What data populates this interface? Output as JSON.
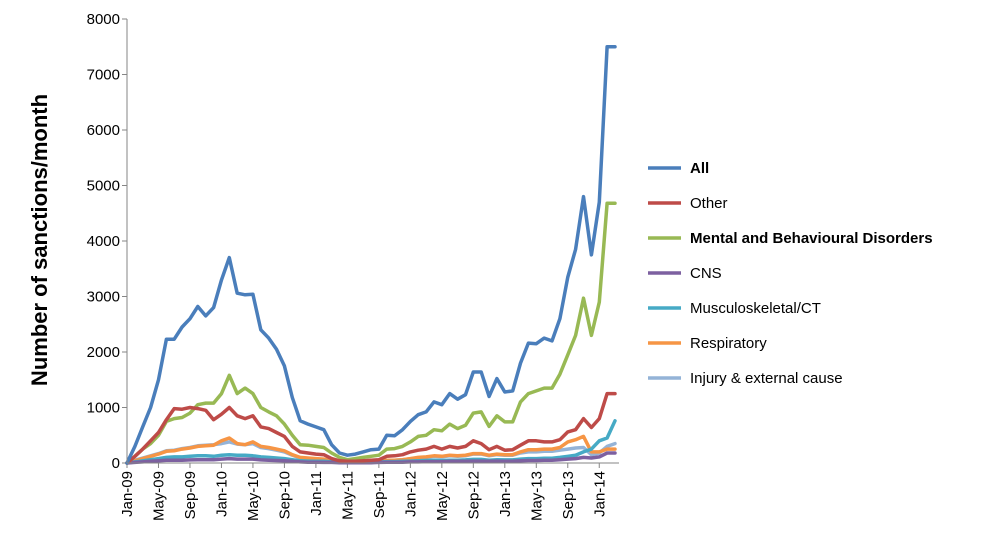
{
  "chart_data": {
    "type": "line",
    "title": "",
    "xlabel": "",
    "ylabel": "Number of sanctions/month",
    "ylim": [
      0,
      8000
    ],
    "yticks": [
      0,
      1000,
      2000,
      3000,
      4000,
      5000,
      6000,
      7000,
      8000
    ],
    "grid": false,
    "legend_position": "right",
    "x_tick_labels": [
      "Jan-09",
      "May-09",
      "Sep-09",
      "Jan-10",
      "May-10",
      "Sep-10",
      "Jan-11",
      "May-11",
      "Sep-11",
      "Jan-12",
      "May-12",
      "Sep-12",
      "Jan-13",
      "May-13",
      "Sep-13",
      "Jan-14"
    ],
    "x_tick_indices": [
      0,
      4,
      8,
      12,
      16,
      20,
      24,
      28,
      32,
      36,
      40,
      44,
      48,
      52,
      56,
      60
    ],
    "num_points": 63,
    "series": [
      {
        "name": "All",
        "color": "#4A7EBB",
        "bold": true,
        "values": [
          0,
          300,
          650,
          1000,
          1500,
          2230,
          2230,
          2450,
          2600,
          2820,
          2650,
          2800,
          3300,
          3700,
          3060,
          3030,
          3040,
          2400,
          2250,
          2050,
          1750,
          1180,
          760,
          700,
          650,
          600,
          330,
          180,
          140,
          160,
          200,
          240,
          250,
          500,
          490,
          600,
          750,
          870,
          920,
          1100,
          1050,
          1250,
          1150,
          1230,
          1640,
          1640,
          1200,
          1520,
          1280,
          1300,
          1800,
          2160,
          2150,
          2250,
          2200,
          2600,
          3350,
          3850,
          4800,
          3750,
          4700,
          7500,
          7500
        ]
      },
      {
        "name": "Other",
        "color": "#BE4B48",
        "bold": false,
        "values": [
          0,
          120,
          250,
          400,
          550,
          780,
          980,
          970,
          1000,
          980,
          950,
          780,
          880,
          1000,
          850,
          800,
          850,
          650,
          620,
          550,
          480,
          300,
          200,
          180,
          160,
          150,
          80,
          40,
          30,
          30,
          40,
          50,
          60,
          120,
          130,
          150,
          200,
          230,
          250,
          300,
          250,
          300,
          270,
          300,
          400,
          350,
          240,
          300,
          230,
          240,
          320,
          400,
          400,
          380,
          380,
          420,
          560,
          600,
          800,
          640,
          800,
          1250,
          1250
        ]
      },
      {
        "name": "Mental and Behavioural Disorders",
        "color": "#98B954",
        "bold": true,
        "values": [
          0,
          120,
          250,
          350,
          500,
          750,
          800,
          820,
          900,
          1050,
          1080,
          1080,
          1250,
          1580,
          1250,
          1350,
          1250,
          1000,
          920,
          850,
          700,
          500,
          330,
          320,
          300,
          280,
          180,
          100,
          60,
          80,
          100,
          120,
          140,
          250,
          260,
          300,
          380,
          480,
          500,
          600,
          580,
          700,
          620,
          680,
          900,
          920,
          660,
          850,
          740,
          740,
          1100,
          1250,
          1300,
          1350,
          1350,
          1600,
          1950,
          2300,
          2970,
          2300,
          2900,
          4680,
          4680
        ]
      },
      {
        "name": "CNS",
        "color": "#7D60A0",
        "bold": false,
        "values": [
          0,
          10,
          20,
          30,
          40,
          50,
          50,
          50,
          55,
          60,
          60,
          60,
          70,
          80,
          70,
          70,
          70,
          55,
          50,
          45,
          40,
          30,
          20,
          15,
          15,
          10,
          10,
          5,
          5,
          5,
          5,
          5,
          10,
          15,
          15,
          15,
          20,
          20,
          25,
          25,
          25,
          30,
          30,
          30,
          35,
          35,
          30,
          35,
          30,
          30,
          40,
          45,
          45,
          50,
          50,
          60,
          70,
          80,
          100,
          90,
          110,
          180,
          180
        ]
      },
      {
        "name": "Musculoskeletal/CT",
        "color": "#46AAC5",
        "bold": false,
        "values": [
          0,
          20,
          40,
          60,
          80,
          100,
          110,
          110,
          120,
          130,
          130,
          120,
          140,
          150,
          140,
          140,
          130,
          110,
          100,
          90,
          80,
          60,
          40,
          35,
          30,
          30,
          20,
          10,
          8,
          8,
          10,
          12,
          15,
          25,
          25,
          30,
          35,
          40,
          45,
          50,
          45,
          50,
          50,
          55,
          65,
          65,
          50,
          60,
          55,
          55,
          70,
          80,
          80,
          85,
          85,
          100,
          120,
          140,
          200,
          250,
          400,
          450,
          760
        ]
      },
      {
        "name": "Respiratory",
        "color": "#F69545",
        "bold": false,
        "values": [
          0,
          40,
          80,
          120,
          160,
          210,
          220,
          250,
          270,
          300,
          310,
          320,
          400,
          450,
          350,
          330,
          380,
          300,
          280,
          250,
          220,
          150,
          100,
          90,
          80,
          70,
          40,
          20,
          15,
          15,
          20,
          25,
          30,
          50,
          50,
          60,
          80,
          100,
          110,
          130,
          120,
          140,
          130,
          140,
          170,
          170,
          140,
          160,
          150,
          150,
          200,
          240,
          240,
          250,
          250,
          280,
          380,
          420,
          480,
          200,
          200,
          250,
          250
        ]
      },
      {
        "name": "Injury & external cause",
        "color": "#94B3D7",
        "bold": false,
        "values": [
          0,
          50,
          90,
          130,
          170,
          220,
          230,
          260,
          280,
          310,
          320,
          330,
          350,
          380,
          340,
          330,
          350,
          280,
          260,
          230,
          200,
          140,
          90,
          80,
          70,
          60,
          35,
          20,
          15,
          15,
          20,
          25,
          30,
          50,
          50,
          60,
          75,
          90,
          100,
          120,
          110,
          130,
          120,
          130,
          160,
          160,
          130,
          150,
          140,
          140,
          180,
          200,
          200,
          210,
          210,
          230,
          250,
          270,
          280,
          150,
          180,
          300,
          350
        ]
      }
    ]
  }
}
